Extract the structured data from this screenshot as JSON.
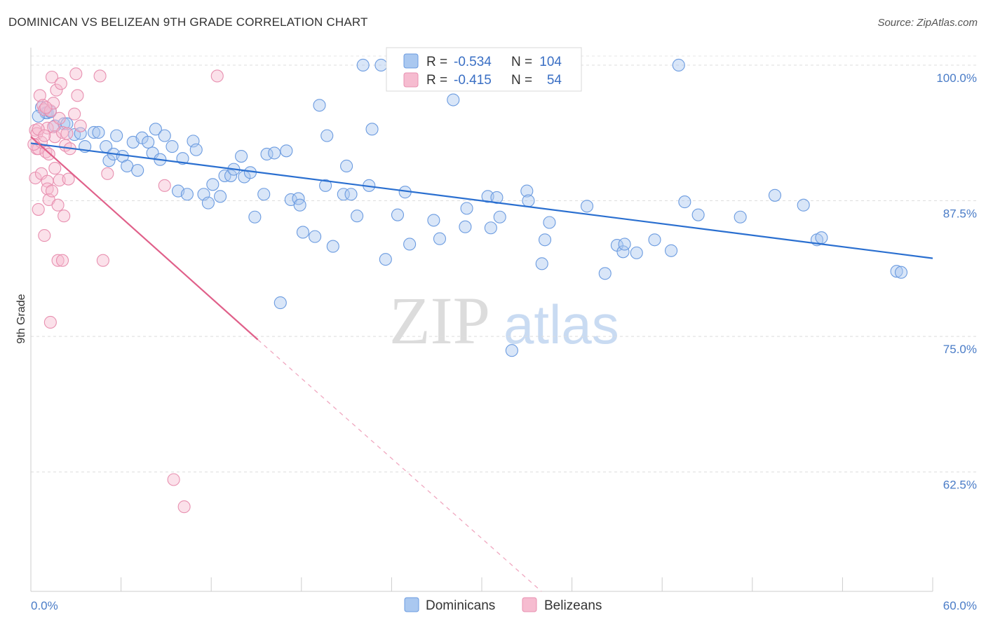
{
  "title": "DOMINICAN VS BELIZEAN 9TH GRADE CORRELATION CHART",
  "source": "Source: ZipAtlas.com",
  "watermark": {
    "zip": "ZIP",
    "atlas": "atlas"
  },
  "legend": {
    "r_label": "R =",
    "n_label": "N =",
    "rows": [
      {
        "r": "-0.534",
        "n": "104",
        "fill": "#aac8f0",
        "stroke": "#6b9be0"
      },
      {
        "r": "-0.415",
        "n": "54",
        "fill": "#f6bcd0",
        "stroke": "#e890b0"
      }
    ]
  },
  "chart_data": {
    "type": "scatter",
    "title": "DOMINICAN VS BELIZEAN 9TH GRADE CORRELATION CHART",
    "xlabel": "",
    "ylabel": "9th Grade",
    "xlim": [
      0,
      60
    ],
    "ylim": [
      51.5,
      102
    ],
    "x_tick_labels": [
      "0.0%",
      "60.0%"
    ],
    "y_ticks": [
      {
        "value": 100,
        "label": "100.0%"
      },
      {
        "value": 87.5,
        "label": "87.5%"
      },
      {
        "value": 75,
        "label": "75.0%"
      },
      {
        "value": 62.5,
        "label": "62.5%"
      }
    ],
    "grid": "horizontal dashed",
    "legend_position": "top-center",
    "series": [
      {
        "name": "Dominicans",
        "color": "#6b9be0",
        "fill": "#aac8f0",
        "line_color": "#2a6fd0",
        "trend": {
          "x": [
            0,
            60
          ],
          "y": [
            92.8,
            82.2
          ]
        },
        "points": [
          [
            0.7,
            96.1
          ],
          [
            1.0,
            95.6
          ],
          [
            1.1,
            95.6
          ],
          [
            1.3,
            95.7
          ],
          [
            1.6,
            94.4
          ],
          [
            2.2,
            94.6
          ],
          [
            2.4,
            94.6
          ],
          [
            2.9,
            93.6
          ],
          [
            3.3,
            93.7
          ],
          [
            3.6,
            92.5
          ],
          [
            4.2,
            93.8
          ],
          [
            4.5,
            93.8
          ],
          [
            5.0,
            92.5
          ],
          [
            5.2,
            91.2
          ],
          [
            5.5,
            91.8
          ],
          [
            5.7,
            93.5
          ],
          [
            6.1,
            91.6
          ],
          [
            6.4,
            90.7
          ],
          [
            6.8,
            92.9
          ],
          [
            7.1,
            90.3
          ],
          [
            7.4,
            93.3
          ],
          [
            7.8,
            92.9
          ],
          [
            8.1,
            91.9
          ],
          [
            8.3,
            94.1
          ],
          [
            8.6,
            91.3
          ],
          [
            8.9,
            93.5
          ],
          [
            9.4,
            92.5
          ],
          [
            9.8,
            88.4
          ],
          [
            10.1,
            91.4
          ],
          [
            10.4,
            88.1
          ],
          [
            10.8,
            93.0
          ],
          [
            11.0,
            92.2
          ],
          [
            11.5,
            88.1
          ],
          [
            11.8,
            87.3
          ],
          [
            12.1,
            89.0
          ],
          [
            12.6,
            87.9
          ],
          [
            12.9,
            89.8
          ],
          [
            13.3,
            89.8
          ],
          [
            13.5,
            90.4
          ],
          [
            14.0,
            91.6
          ],
          [
            14.2,
            89.7
          ],
          [
            14.6,
            90.1
          ],
          [
            14.9,
            86.0
          ],
          [
            15.5,
            88.1
          ],
          [
            15.7,
            91.8
          ],
          [
            16.2,
            91.9
          ],
          [
            16.6,
            78.1
          ],
          [
            17.0,
            92.1
          ],
          [
            17.3,
            87.6
          ],
          [
            17.8,
            87.7
          ],
          [
            17.9,
            87.1
          ],
          [
            18.1,
            84.6
          ],
          [
            18.9,
            84.2
          ],
          [
            19.2,
            96.3
          ],
          [
            19.6,
            88.9
          ],
          [
            19.7,
            93.5
          ],
          [
            20.1,
            83.3
          ],
          [
            20.8,
            88.1
          ],
          [
            21.0,
            90.7
          ],
          [
            21.3,
            88.1
          ],
          [
            21.7,
            86.1
          ],
          [
            22.1,
            100.0
          ],
          [
            22.5,
            88.9
          ],
          [
            22.7,
            94.1
          ],
          [
            23.3,
            100.0
          ],
          [
            23.6,
            82.1
          ],
          [
            24.4,
            86.2
          ],
          [
            24.9,
            88.3
          ],
          [
            25.2,
            83.5
          ],
          [
            26.8,
            85.7
          ],
          [
            27.2,
            84.0
          ],
          [
            28.1,
            96.8
          ],
          [
            28.9,
            85.1
          ],
          [
            29.0,
            86.8
          ],
          [
            30.4,
            87.9
          ],
          [
            30.6,
            85.0
          ],
          [
            31.0,
            87.8
          ],
          [
            31.2,
            86.0
          ],
          [
            32.0,
            73.7
          ],
          [
            32.3,
            100.0
          ],
          [
            33.0,
            88.4
          ],
          [
            33.1,
            87.5
          ],
          [
            34.0,
            81.7
          ],
          [
            34.2,
            83.9
          ],
          [
            34.5,
            85.5
          ],
          [
            37.0,
            87.0
          ],
          [
            38.2,
            80.8
          ],
          [
            39.0,
            83.4
          ],
          [
            39.4,
            82.8
          ],
          [
            39.5,
            83.5
          ],
          [
            40.3,
            82.7
          ],
          [
            41.5,
            83.9
          ],
          [
            42.6,
            82.9
          ],
          [
            43.1,
            100.0
          ],
          [
            43.5,
            87.4
          ],
          [
            44.4,
            86.2
          ],
          [
            47.2,
            86.0
          ],
          [
            49.5,
            88.0
          ],
          [
            51.4,
            87.1
          ],
          [
            52.3,
            83.9
          ],
          [
            52.6,
            84.1
          ],
          [
            57.6,
            81.0
          ],
          [
            57.9,
            80.9
          ],
          [
            0.5,
            95.3
          ]
        ]
      },
      {
        "name": "Belizeans",
        "color": "#e890b0",
        "fill": "#f6bcd0",
        "line_color": "#e0608a",
        "trend": {
          "x": [
            0,
            15.1
          ],
          "y": [
            93.4,
            74.7
          ]
        },
        "trend_dashed": {
          "x": [
            15.1,
            36
          ],
          "y": [
            74.7,
            49
          ]
        },
        "points": [
          [
            0.3,
            94.0
          ],
          [
            0.3,
            89.6
          ],
          [
            0.4,
            92.3
          ],
          [
            0.4,
            93.7
          ],
          [
            0.5,
            86.7
          ],
          [
            0.5,
            92.3
          ],
          [
            0.6,
            97.2
          ],
          [
            0.7,
            90.0
          ],
          [
            0.7,
            92.9
          ],
          [
            0.8,
            96.3
          ],
          [
            0.9,
            95.9
          ],
          [
            0.9,
            84.3
          ],
          [
            1.0,
            92.0
          ],
          [
            1.1,
            89.3
          ],
          [
            1.1,
            88.6
          ],
          [
            1.1,
            94.2
          ],
          [
            1.2,
            87.6
          ],
          [
            1.3,
            76.3
          ],
          [
            1.3,
            95.8
          ],
          [
            1.4,
            88.4
          ],
          [
            1.4,
            98.9
          ],
          [
            1.5,
            96.5
          ],
          [
            1.5,
            94.3
          ],
          [
            1.6,
            93.4
          ],
          [
            1.6,
            90.5
          ],
          [
            1.7,
            97.7
          ],
          [
            1.8,
            82.0
          ],
          [
            1.8,
            87.1
          ],
          [
            1.9,
            95.1
          ],
          [
            1.9,
            89.4
          ],
          [
            2.0,
            98.3
          ],
          [
            2.1,
            93.8
          ],
          [
            2.1,
            82.0
          ],
          [
            2.2,
            86.1
          ],
          [
            2.3,
            92.6
          ],
          [
            2.4,
            93.7
          ],
          [
            2.5,
            89.5
          ],
          [
            2.6,
            92.3
          ],
          [
            2.9,
            95.5
          ],
          [
            3.0,
            99.2
          ],
          [
            3.1,
            97.2
          ],
          [
            3.3,
            94.4
          ],
          [
            4.6,
            99.0
          ],
          [
            4.8,
            82.0
          ],
          [
            5.1,
            90.0
          ],
          [
            8.9,
            88.9
          ],
          [
            9.5,
            61.8
          ],
          [
            10.2,
            59.3
          ],
          [
            12.4,
            99.0
          ],
          [
            0.2,
            92.7
          ],
          [
            0.5,
            94.1
          ],
          [
            0.9,
            93.5
          ],
          [
            1.0,
            96.1
          ],
          [
            1.2,
            91.8
          ]
        ]
      }
    ]
  }
}
